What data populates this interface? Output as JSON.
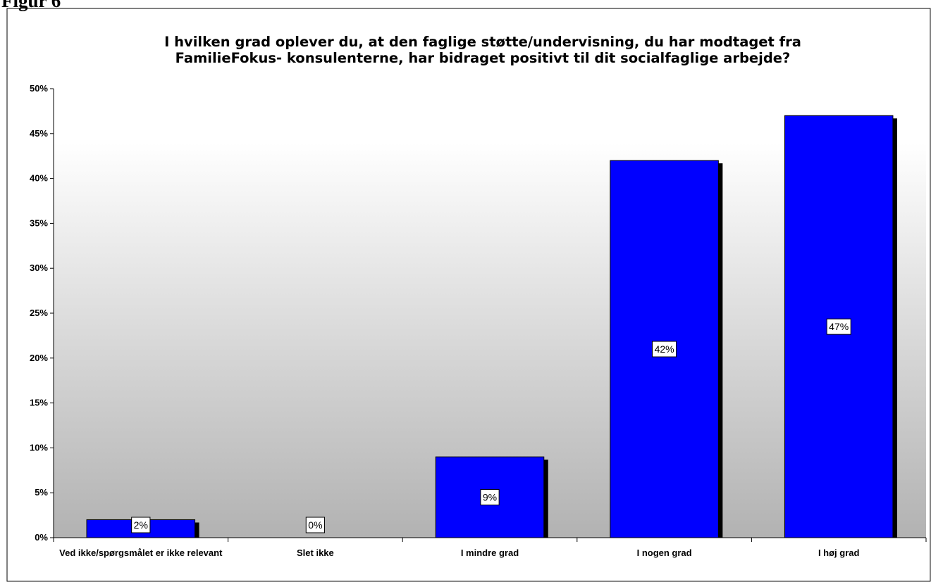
{
  "figure_label": "Figur 6",
  "chart_data": {
    "type": "bar",
    "title": "I hvilken grad oplever du, at den faglige støtte/undervisning, du har modtaget fra FamilieFokus- konsulenterne, har bidraget positivt til dit socialfaglige arbejde?",
    "categories": [
      "Ved ikke/spørgsmålet er ikke relevant",
      "Slet ikke",
      "I mindre grad",
      "I nogen grad",
      "I høj grad"
    ],
    "values": [
      2,
      0,
      9,
      42,
      47
    ],
    "value_labels": [
      "2%",
      "0%",
      "9%",
      "42%",
      "47%"
    ],
    "color": "#0000ff",
    "ylim": [
      0,
      50
    ],
    "yticks": [
      {
        "value": 0,
        "label": "0%"
      },
      {
        "value": 5,
        "label": "5%"
      },
      {
        "value": 10,
        "label": "10%"
      },
      {
        "value": 15,
        "label": "15%"
      },
      {
        "value": 20,
        "label": "20%"
      },
      {
        "value": 25,
        "label": "25%"
      },
      {
        "value": 30,
        "label": "30%"
      },
      {
        "value": 35,
        "label": "35%"
      },
      {
        "value": 40,
        "label": "40%"
      },
      {
        "value": 45,
        "label": "45%"
      },
      {
        "value": 50,
        "label": "50%"
      }
    ]
  }
}
